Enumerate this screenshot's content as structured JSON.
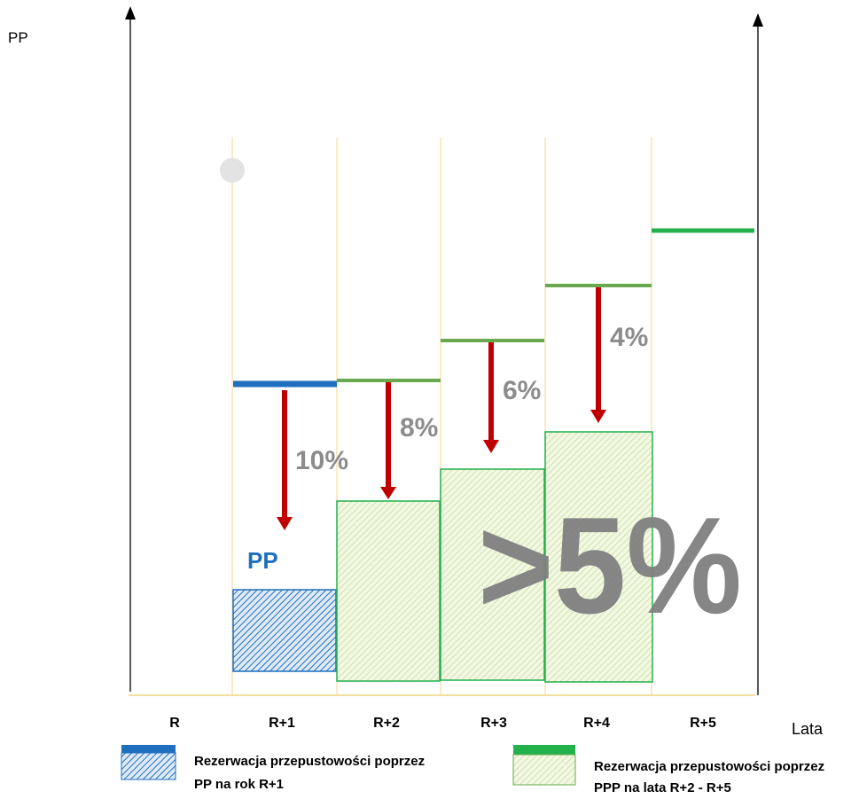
{
  "axes": {
    "y_label": "PP",
    "x_label": "Lata"
  },
  "x_categories": [
    "R",
    "R+1",
    "R+2",
    "R+3",
    "R+4",
    "R+5"
  ],
  "reductions": [
    {
      "from": "R+1",
      "label": "10%"
    },
    {
      "from": "R+2",
      "label": "8%"
    },
    {
      "from": "R+3",
      "label": "6%"
    },
    {
      "from": "R+4",
      "label": "4%"
    }
  ],
  "pp_label": "PP",
  "big_label": ">5%",
  "legend": {
    "pp": {
      "line1": "Rezerwacja przepustowości poprzez",
      "line2": "PP na rok R+1",
      "color": "#1f6fbf"
    },
    "ppp": {
      "line1": "Rezerwacja przepustowości poprzez",
      "line2": "PPP na lata R+2 - R+5",
      "color": "#22b14c"
    }
  },
  "colors": {
    "blue": "#1f6fbf",
    "green": "#22b14c",
    "olive_green": "#6aa84f",
    "arrow_red": "#c00000",
    "percent_gray": "#8c8c8c",
    "grid_yellow": "#f3dfa0"
  }
}
